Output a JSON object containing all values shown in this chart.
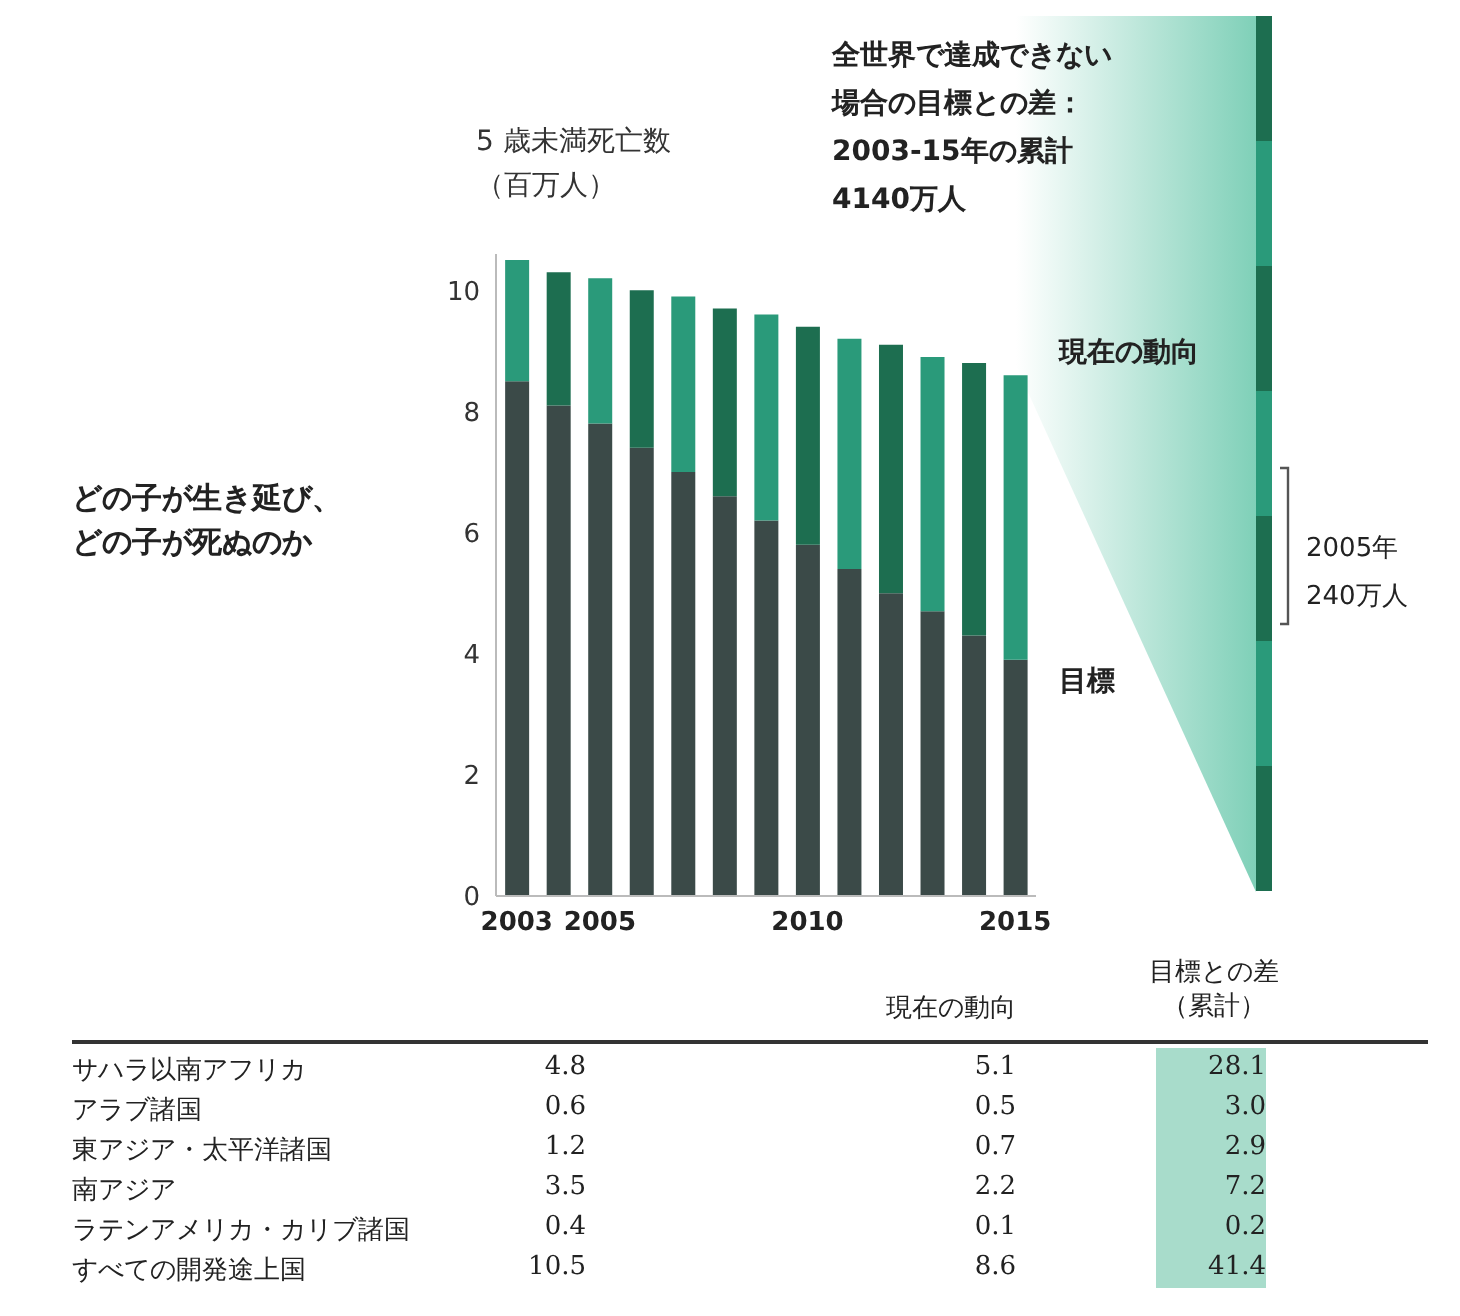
{
  "chart_data": [
    {
      "type": "bar",
      "stacked": true,
      "title": "どの子が生き延び、どの子が死ぬのか",
      "ylabel": "5 歳未満死亡数（百万人）",
      "categories": [
        "2003",
        null,
        "2005",
        null,
        null,
        null,
        null,
        "2010",
        null,
        null,
        null,
        null,
        "2015"
      ],
      "series": [
        {
          "color": "#3b4a48",
          "values": [
            8.5,
            8.1,
            7.8,
            7.4,
            7.0,
            6.6,
            6.2,
            5.8,
            5.4,
            5.0,
            4.7,
            4.3,
            3.9
          ]
        },
        {
          "color": "#2a9a7a",
          "colors": [
            "#2a9a7a",
            "#1d6e50",
            "#2a9a7a",
            "#1d6e50",
            "#2a9a7a",
            "#1d6e50",
            "#2a9a7a",
            "#1d6e50",
            "#2a9a7a",
            "#1d6e50",
            "#2a9a7a",
            "#1d6e50",
            "#2a9a7a"
          ],
          "values": [
            2.0,
            2.2,
            2.4,
            2.6,
            2.9,
            3.1,
            3.4,
            3.6,
            3.8,
            4.1,
            4.2,
            4.5,
            4.7
          ]
        }
      ],
      "ylim": [
        0,
        10.6
      ],
      "yticks": [
        0,
        2,
        4,
        6,
        8,
        10
      ],
      "annotations": [
        {
          "text": "現在の動向",
          "x": "2015",
          "y": 8.6
        },
        {
          "text": "目標",
          "x": "2015",
          "y": 3.9
        },
        "全世界で達成できない場合の目標との差：2003-15年の累計4140万人",
        "2005年240万人"
      ]
    },
    {
      "type": "other",
      "data_labels": true,
      "categories": [
        "サハラ以南アフリカ",
        "アラブ諸国",
        "東アジア・太平洋諸国",
        "南アジア",
        "ラテンアメリカ・カリブ諸国",
        "すべての開発途上国"
      ],
      "series": [
        {
          "values": [
            4.8,
            0.6,
            1.2,
            3.5,
            0.4,
            10.5
          ]
        },
        {
          "name": "現在の動向",
          "values": [
            5.1,
            0.5,
            0.7,
            2.2,
            0.1,
            8.6
          ]
        },
        {
          "name": "目標との差（累計）",
          "color": "#a8dccb",
          "values": [
            28.1,
            3.0,
            2.9,
            7.2,
            0.2,
            41.4
          ],
          "value_labels": [
            "28.1",
            "3.0",
            "2.9",
            "7.2",
            "0.2",
            "41.4"
          ]
        }
      ]
    }
  ]
}
